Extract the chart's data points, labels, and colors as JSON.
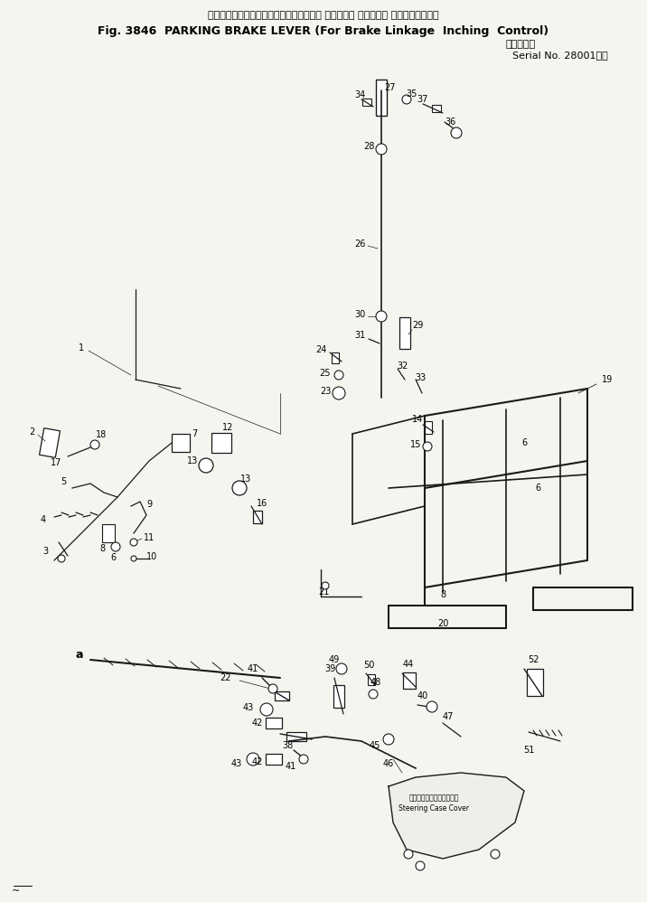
{
  "title_jp": "パーキング　ブレーキ　レバー（ブレーキ リンケージ インチング コントロール用）",
  "title_en": "Fig. 3846  PARKING BRAKE LEVER (For Brake Linkage  Inching  Control)",
  "serial_jp": "（適用号機",
  "serial_en": "  Serial No. 28001～）",
  "bg_color": "#f5f5f0",
  "line_color": "#1a1a1a",
  "text_color": "#000000",
  "figsize": [
    7.16,
    9.98
  ],
  "dpi": 100
}
